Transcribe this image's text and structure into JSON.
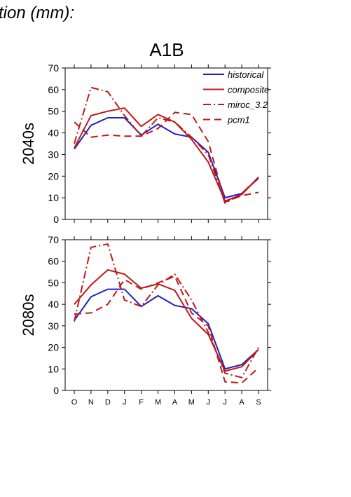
{
  "figure": {
    "title_fragment": "tion (mm):",
    "scenario": "A1B"
  },
  "chart_data": [
    {
      "type": "line",
      "panel_label": "2040s",
      "x": [
        "O",
        "N",
        "D",
        "J",
        "F",
        "M",
        "A",
        "M",
        "J",
        "J",
        "A",
        "S"
      ],
      "ylim": [
        0,
        70
      ],
      "yticks": [
        0,
        10,
        20,
        30,
        40,
        50,
        60,
        70
      ],
      "legend": {
        "placement": "top-right"
      },
      "series": [
        {
          "name": "historical",
          "color": "#2020c0",
          "dash": "solid",
          "values": [
            32.5,
            43.5,
            47,
            47,
            39,
            44,
            39.5,
            38,
            31,
            10,
            12,
            19
          ]
        },
        {
          "name": "composite",
          "color": "#c01818",
          "dash": "solid",
          "values": [
            33,
            48,
            50,
            51.5,
            43,
            48.5,
            45,
            37,
            26.5,
            8.5,
            11.5,
            19.5
          ]
        },
        {
          "name": "miroc_3.2",
          "color": "#c01818",
          "dash": "dashdot",
          "values": [
            35,
            61,
            59,
            48,
            38.5,
            47,
            45,
            38,
            30,
            7.5,
            12,
            19.5
          ]
        },
        {
          "name": "pcm1",
          "color": "#c01818",
          "dash": "dashed",
          "values": [
            45,
            38,
            39,
            38.5,
            38.5,
            42,
            49.5,
            48.5,
            36,
            8,
            11,
            12.5
          ]
        }
      ]
    },
    {
      "type": "line",
      "panel_label": "2080s",
      "x": [
        "O",
        "N",
        "D",
        "J",
        "F",
        "M",
        "A",
        "M",
        "J",
        "J",
        "A",
        "S"
      ],
      "ylim": [
        0,
        70
      ],
      "yticks": [
        0,
        10,
        20,
        30,
        40,
        50,
        60,
        70
      ],
      "series": [
        {
          "name": "historical",
          "color": "#2020c0",
          "dash": "solid",
          "values": [
            32.5,
            43.5,
            47,
            47,
            39,
            44,
            39.5,
            38,
            31,
            10,
            12,
            19
          ]
        },
        {
          "name": "composite",
          "color": "#c01818",
          "dash": "solid",
          "values": [
            40,
            49,
            56,
            54,
            47.5,
            49.5,
            46.5,
            33.5,
            26,
            9,
            11,
            19
          ]
        },
        {
          "name": "miroc_3.2",
          "color": "#c01818",
          "dash": "dashdot",
          "values": [
            32,
            66.5,
            68,
            42,
            39,
            49,
            54,
            42,
            27,
            8,
            6,
            20
          ]
        },
        {
          "name": "pcm1",
          "color": "#c01818",
          "dash": "dashed",
          "values": [
            35.5,
            36,
            40,
            51.5,
            47,
            50,
            53,
            36,
            30,
            4,
            3.5,
            10.5
          ]
        }
      ]
    }
  ]
}
